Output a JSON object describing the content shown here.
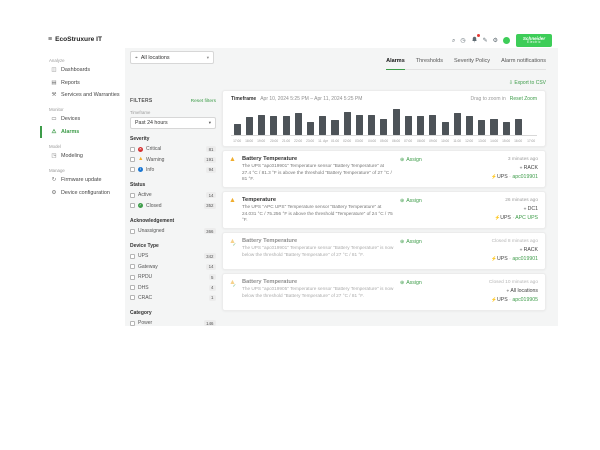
{
  "brand": {
    "green": "#3dcd58",
    "link_green": "#3d9c49"
  },
  "topbar": {
    "logo": "EcoStruxure IT",
    "icons": [
      {
        "name": "search",
        "glyph": "⌕"
      },
      {
        "name": "history",
        "glyph": "◷"
      },
      {
        "name": "notifications",
        "glyph": "bell",
        "badge": true
      },
      {
        "name": "feedback",
        "glyph": "✎"
      },
      {
        "name": "settings",
        "glyph": "⚙"
      }
    ],
    "schneider_line1": "Schneider",
    "schneider_line2": "Electric"
  },
  "sidebar": {
    "sections": [
      {
        "label": "Analyze",
        "items": [
          {
            "label": "Dashboards",
            "icon": "◫"
          },
          {
            "label": "Reports",
            "icon": "▤"
          },
          {
            "label": "Services and Warranties",
            "icon": "⚒"
          }
        ]
      },
      {
        "label": "Monitor",
        "items": [
          {
            "label": "Devices",
            "icon": "▭"
          },
          {
            "label": "Alarms",
            "icon": "⚠",
            "active": true
          }
        ]
      },
      {
        "label": "Model",
        "items": [
          {
            "label": "Modeling",
            "icon": "◳"
          }
        ]
      },
      {
        "label": "Manage",
        "items": [
          {
            "label": "Firmware update",
            "icon": "↻"
          },
          {
            "label": "Device configuration",
            "icon": "⚙"
          }
        ]
      }
    ]
  },
  "location_filter": {
    "label": "All locations"
  },
  "tabs": [
    {
      "label": "Alarms",
      "active": true
    },
    {
      "label": "Thresholds"
    },
    {
      "label": "Severity Policy"
    },
    {
      "label": "Alarm notifications"
    }
  ],
  "export_label": "Export to CSV",
  "filters": {
    "title": "FILTERS",
    "reset": "Reset filters",
    "timeframe_label": "Timeframe",
    "timeframe_value": "Past 24 hours",
    "groups": [
      {
        "label": "Severity",
        "rows": [
          {
            "label": "Critical",
            "icon": "critical",
            "count": "81"
          },
          {
            "label": "Warning",
            "icon": "warning",
            "count": "191"
          },
          {
            "label": "Info",
            "icon": "info",
            "count": "94"
          }
        ]
      },
      {
        "label": "Status",
        "rows": [
          {
            "label": "Active",
            "count": "14"
          },
          {
            "label": "Closed",
            "icon": "closed",
            "count": "352"
          }
        ]
      },
      {
        "label": "Acknowledgement",
        "rows": [
          {
            "label": "Unassigned",
            "count": "366"
          }
        ]
      },
      {
        "label": "Device Type",
        "rows": [
          {
            "label": "UPS",
            "count": "342"
          },
          {
            "label": "Gateway",
            "count": "14"
          },
          {
            "label": "RPDU",
            "count": "5"
          },
          {
            "label": "DHS",
            "count": "4"
          },
          {
            "label": "CRAC",
            "count": "1"
          }
        ]
      },
      {
        "label": "Category",
        "rows": [
          {
            "label": "Power",
            "count": "146"
          }
        ]
      }
    ]
  },
  "chart": {
    "timeframe_label": "Timeframe",
    "range": "Apr 10, 2024 5:25 PM  –  Apr 11, 2024 5:25 PM",
    "drag_hint": "Drag to zoom in",
    "reset_zoom": "Reset Zoom"
  },
  "chart_data": {
    "type": "bar",
    "x": [
      "17:00",
      "18:00",
      "19:00",
      "20:00",
      "21:00",
      "22:00",
      "23:00",
      "11. Apr",
      "01:00",
      "02:00",
      "03:00",
      "04:00",
      "05:00",
      "06:00",
      "07:00",
      "08:00",
      "09:00",
      "10:00",
      "11:00",
      "12:00",
      "13:00",
      "14:00",
      "15:00",
      "16:00",
      "17:00"
    ],
    "values": [
      8,
      13,
      15,
      14,
      14,
      16,
      10,
      14,
      11,
      17,
      15,
      15,
      12,
      19,
      14,
      14,
      15,
      10,
      16,
      14,
      11,
      12,
      10,
      12,
      0
    ],
    "bar_color": "#4d5358",
    "ylim": [
      0,
      20
    ],
    "grid": false,
    "legend": null
  },
  "alarms": [
    {
      "severity": "warning",
      "status": "active",
      "title": "Battery Temperature",
      "description": "The UPS \"apc019901\" Temperature sensor \"Battery Temperature\" at 27.4 °C / 81.3 °F is above the threshold \"Battery Temperature\" of 27 °C / 81 °F.",
      "assign_label": "Assign",
      "time": "3 minutes ago",
      "location": "RACK",
      "device_type": "UPS",
      "device": "apc019901"
    },
    {
      "severity": "warning",
      "status": "active",
      "title": "Temperature",
      "description": "The UPS \"APC UPS\" Temperature sensor \"Battery Temperature\" at 24.031 °C / 75.256 °F is above the threshold \"Temperature\" of 24 °C / 75 °F.",
      "assign_label": "Assign",
      "time": "26 minutes ago",
      "location": "DC1",
      "device_type": "UPS",
      "device": "APC UPS"
    },
    {
      "severity": "warning",
      "status": "closed",
      "title": "Battery Temperature",
      "description": "The UPS \"apc019901\" Temperature sensor \"Battery Temperature\" is now below the threshold \"Battery Temperature\" of 27 °C / 81 °F.",
      "assign_label": "Assign",
      "time": "Closed 8 minutes ago",
      "location": "RACK",
      "device_type": "UPS",
      "device": "apc019901"
    },
    {
      "severity": "warning",
      "status": "closed",
      "title": "Battery Temperature",
      "description": "The UPS \"apc019905\" Temperature sensor \"Battery Temperature\" is now below the threshold \"Battery Temperature\" of 27 °C / 81 °F.",
      "assign_label": "Assign",
      "time": "Closed 10 minutes ago",
      "location": "All locations",
      "device_type": "UPS",
      "device": "apc019905"
    }
  ]
}
